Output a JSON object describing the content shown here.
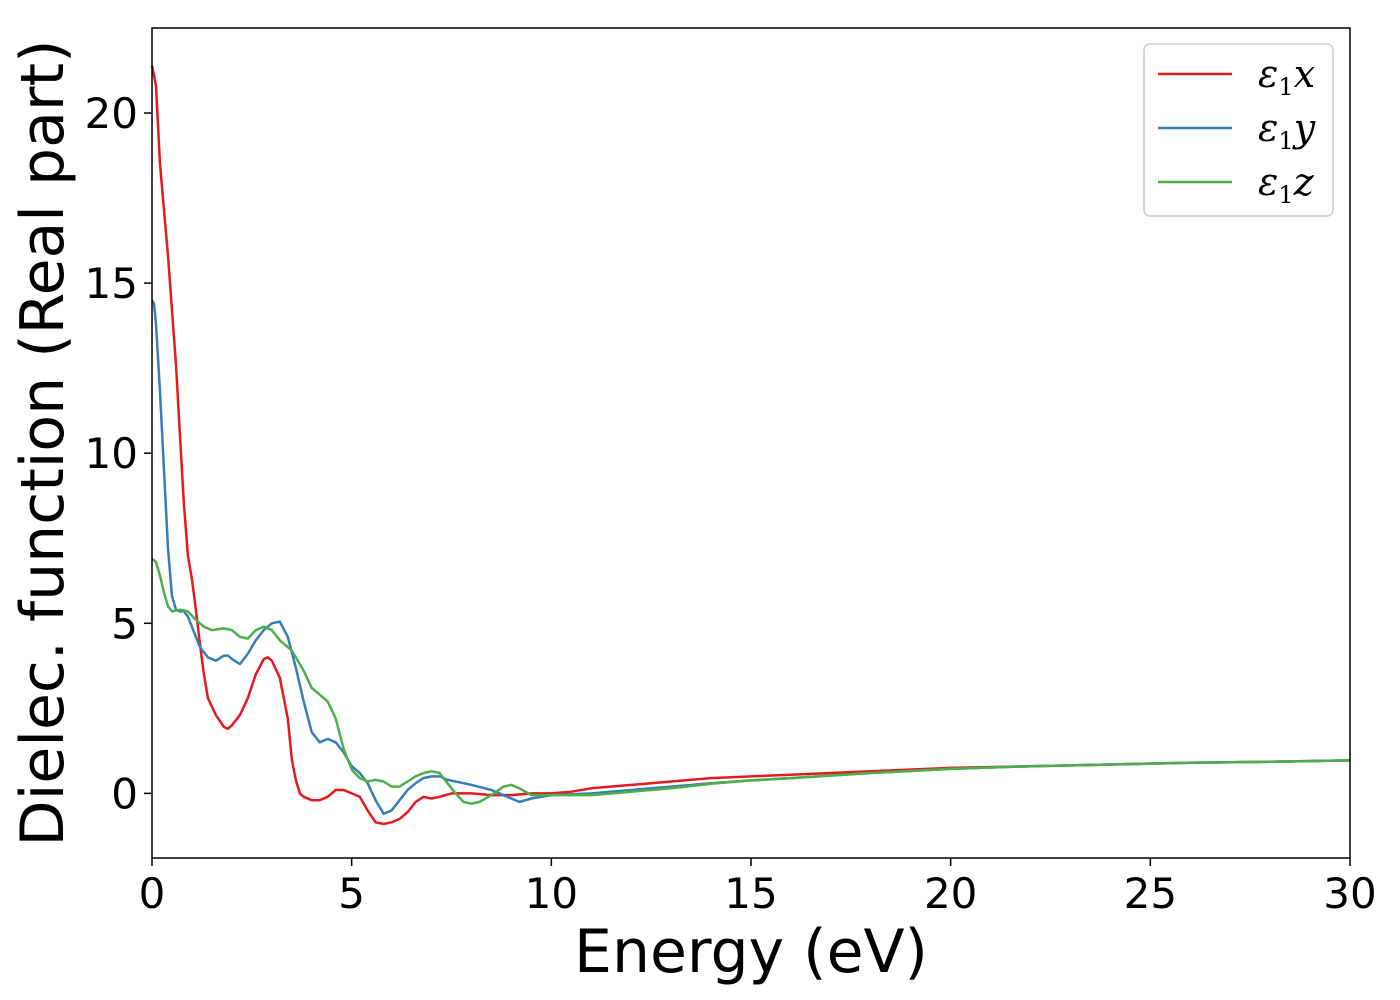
{
  "chart_data": {
    "type": "line",
    "xlabel": "Energy (eV)",
    "ylabel": "Dielec. function (Real part)",
    "xlim": [
      0,
      30
    ],
    "ylim": [
      -1.9,
      22.5
    ],
    "xticks": [
      0,
      5,
      10,
      15,
      20,
      25,
      30
    ],
    "yticks": [
      0,
      5,
      10,
      15,
      20
    ],
    "grid": false,
    "legend_position": "top-right",
    "series": [
      {
        "name": "ε1x",
        "legend": {
          "sym": "ε",
          "sub": "1",
          "axis": "x"
        },
        "color": "#e41a1c",
        "points": [
          [
            0,
            21.4
          ],
          [
            0.1,
            20.8
          ],
          [
            0.2,
            18.5
          ],
          [
            0.4,
            15.8
          ],
          [
            0.6,
            12.6
          ],
          [
            0.7,
            10.5
          ],
          [
            0.8,
            8.5
          ],
          [
            0.9,
            7.0
          ],
          [
            1.0,
            6.3
          ],
          [
            1.1,
            5.4
          ],
          [
            1.2,
            4.4
          ],
          [
            1.3,
            3.5
          ],
          [
            1.4,
            2.8
          ],
          [
            1.6,
            2.3
          ],
          [
            1.8,
            1.95
          ],
          [
            1.9,
            1.9
          ],
          [
            2.0,
            2.0
          ],
          [
            2.2,
            2.3
          ],
          [
            2.4,
            2.8
          ],
          [
            2.6,
            3.5
          ],
          [
            2.8,
            3.95
          ],
          [
            2.9,
            4.0
          ],
          [
            3.0,
            3.9
          ],
          [
            3.2,
            3.4
          ],
          [
            3.4,
            2.2
          ],
          [
            3.5,
            1.0
          ],
          [
            3.6,
            0.4
          ],
          [
            3.7,
            0.0
          ],
          [
            3.8,
            -0.1
          ],
          [
            4.0,
            -0.2
          ],
          [
            4.2,
            -0.2
          ],
          [
            4.4,
            -0.1
          ],
          [
            4.6,
            0.1
          ],
          [
            4.8,
            0.1
          ],
          [
            5.0,
            0.0
          ],
          [
            5.2,
            -0.1
          ],
          [
            5.4,
            -0.5
          ],
          [
            5.6,
            -0.85
          ],
          [
            5.8,
            -0.9
          ],
          [
            6.0,
            -0.85
          ],
          [
            6.2,
            -0.75
          ],
          [
            6.4,
            -0.55
          ],
          [
            6.6,
            -0.25
          ],
          [
            6.8,
            -0.1
          ],
          [
            7.0,
            -0.15
          ],
          [
            7.2,
            -0.1
          ],
          [
            7.5,
            0.0
          ],
          [
            8.0,
            0.0
          ],
          [
            8.5,
            -0.05
          ],
          [
            9.0,
            -0.05
          ],
          [
            9.5,
            0.0
          ],
          [
            10.0,
            0.0
          ],
          [
            10.5,
            0.05
          ],
          [
            11.0,
            0.15
          ],
          [
            12.0,
            0.25
          ],
          [
            13.0,
            0.35
          ],
          [
            14.0,
            0.45
          ],
          [
            15.0,
            0.5
          ],
          [
            16.0,
            0.55
          ],
          [
            18.0,
            0.65
          ],
          [
            20.0,
            0.75
          ],
          [
            22.0,
            0.8
          ],
          [
            24.0,
            0.85
          ],
          [
            26.0,
            0.9
          ],
          [
            28.0,
            0.93
          ],
          [
            30.0,
            0.97
          ]
        ]
      },
      {
        "name": "ε1y",
        "legend": {
          "sym": "ε",
          "sub": "1",
          "axis": "y"
        },
        "color": "#377eb8",
        "points": [
          [
            0,
            14.5
          ],
          [
            0.05,
            14.4
          ],
          [
            0.1,
            13.8
          ],
          [
            0.2,
            11.8
          ],
          [
            0.3,
            9.5
          ],
          [
            0.4,
            7.2
          ],
          [
            0.5,
            5.8
          ],
          [
            0.6,
            5.4
          ],
          [
            0.7,
            5.35
          ],
          [
            0.8,
            5.35
          ],
          [
            0.9,
            5.2
          ],
          [
            1.0,
            4.9
          ],
          [
            1.1,
            4.6
          ],
          [
            1.2,
            4.3
          ],
          [
            1.4,
            4.0
          ],
          [
            1.6,
            3.9
          ],
          [
            1.8,
            4.05
          ],
          [
            1.9,
            4.05
          ],
          [
            2.0,
            3.95
          ],
          [
            2.2,
            3.8
          ],
          [
            2.4,
            4.1
          ],
          [
            2.6,
            4.5
          ],
          [
            2.8,
            4.8
          ],
          [
            3.0,
            5.0
          ],
          [
            3.2,
            5.05
          ],
          [
            3.4,
            4.6
          ],
          [
            3.6,
            3.7
          ],
          [
            3.8,
            2.7
          ],
          [
            4.0,
            1.8
          ],
          [
            4.2,
            1.5
          ],
          [
            4.4,
            1.6
          ],
          [
            4.6,
            1.5
          ],
          [
            4.8,
            1.2
          ],
          [
            5.0,
            0.8
          ],
          [
            5.2,
            0.6
          ],
          [
            5.4,
            0.3
          ],
          [
            5.6,
            -0.2
          ],
          [
            5.8,
            -0.6
          ],
          [
            6.0,
            -0.5
          ],
          [
            6.2,
            -0.2
          ],
          [
            6.4,
            0.1
          ],
          [
            6.6,
            0.3
          ],
          [
            6.8,
            0.45
          ],
          [
            7.0,
            0.5
          ],
          [
            7.2,
            0.5
          ],
          [
            7.4,
            0.4
          ],
          [
            7.6,
            0.35
          ],
          [
            7.8,
            0.3
          ],
          [
            8.0,
            0.25
          ],
          [
            8.5,
            0.1
          ],
          [
            9.0,
            -0.15
          ],
          [
            9.2,
            -0.25
          ],
          [
            9.5,
            -0.15
          ],
          [
            10.0,
            -0.05
          ],
          [
            11.0,
            0.0
          ],
          [
            12.0,
            0.1
          ],
          [
            13.0,
            0.2
          ],
          [
            14.0,
            0.3
          ],
          [
            15.0,
            0.38
          ],
          [
            16.0,
            0.45
          ],
          [
            18.0,
            0.6
          ],
          [
            20.0,
            0.72
          ],
          [
            22.0,
            0.8
          ],
          [
            24.0,
            0.85
          ],
          [
            26.0,
            0.9
          ],
          [
            28.0,
            0.93
          ],
          [
            30.0,
            0.97
          ]
        ]
      },
      {
        "name": "ε1z",
        "legend": {
          "sym": "ε",
          "sub": "1",
          "axis": "z"
        },
        "color": "#4daf4a",
        "points": [
          [
            0,
            6.9
          ],
          [
            0.1,
            6.8
          ],
          [
            0.2,
            6.4
          ],
          [
            0.3,
            5.9
          ],
          [
            0.4,
            5.5
          ],
          [
            0.5,
            5.35
          ],
          [
            0.7,
            5.4
          ],
          [
            0.9,
            5.35
          ],
          [
            1.1,
            5.1
          ],
          [
            1.3,
            4.9
          ],
          [
            1.5,
            4.8
          ],
          [
            1.8,
            4.85
          ],
          [
            2.0,
            4.8
          ],
          [
            2.2,
            4.6
          ],
          [
            2.4,
            4.55
          ],
          [
            2.6,
            4.8
          ],
          [
            2.8,
            4.9
          ],
          [
            3.0,
            4.8
          ],
          [
            3.2,
            4.5
          ],
          [
            3.5,
            4.2
          ],
          [
            3.8,
            3.6
          ],
          [
            4.0,
            3.1
          ],
          [
            4.2,
            2.9
          ],
          [
            4.4,
            2.7
          ],
          [
            4.6,
            2.2
          ],
          [
            4.8,
            1.3
          ],
          [
            5.0,
            0.7
          ],
          [
            5.2,
            0.45
          ],
          [
            5.4,
            0.35
          ],
          [
            5.6,
            0.4
          ],
          [
            5.8,
            0.35
          ],
          [
            6.0,
            0.2
          ],
          [
            6.2,
            0.2
          ],
          [
            6.4,
            0.35
          ],
          [
            6.6,
            0.5
          ],
          [
            6.8,
            0.6
          ],
          [
            7.0,
            0.65
          ],
          [
            7.2,
            0.6
          ],
          [
            7.4,
            0.3
          ],
          [
            7.6,
            0.0
          ],
          [
            7.8,
            -0.25
          ],
          [
            8.0,
            -0.3
          ],
          [
            8.2,
            -0.25
          ],
          [
            8.5,
            -0.05
          ],
          [
            8.8,
            0.2
          ],
          [
            9.0,
            0.25
          ],
          [
            9.2,
            0.15
          ],
          [
            9.5,
            -0.05
          ],
          [
            10.0,
            -0.05
          ],
          [
            11.0,
            -0.05
          ],
          [
            12.0,
            0.05
          ],
          [
            13.0,
            0.15
          ],
          [
            14.0,
            0.28
          ],
          [
            15.0,
            0.38
          ],
          [
            16.0,
            0.45
          ],
          [
            18.0,
            0.6
          ],
          [
            20.0,
            0.72
          ],
          [
            22.0,
            0.8
          ],
          [
            24.0,
            0.85
          ],
          [
            26.0,
            0.9
          ],
          [
            28.0,
            0.93
          ],
          [
            30.0,
            0.97
          ]
        ]
      }
    ]
  }
}
